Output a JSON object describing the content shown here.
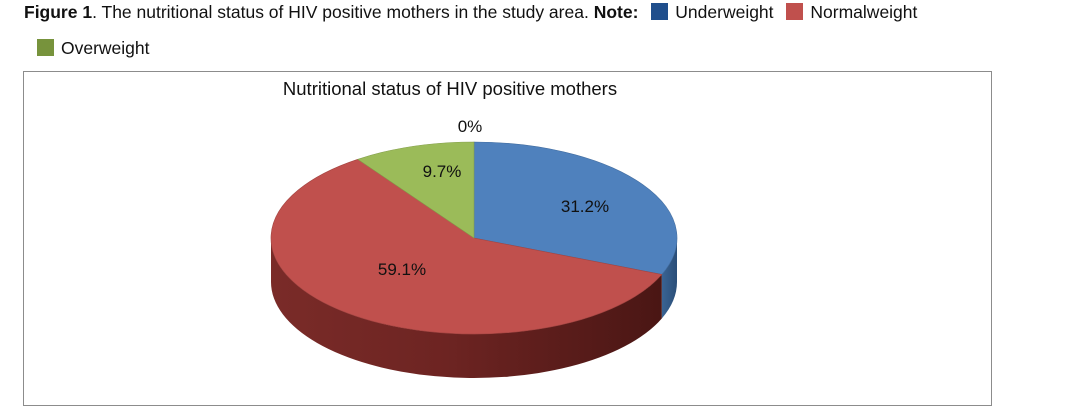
{
  "caption": {
    "figure_label": "Figure 1",
    "sep": ".",
    "text": " The nutritional status of HIV positive mothers in the study area. ",
    "note_label": "Note:"
  },
  "legend": [
    {
      "label": "Underweight",
      "color": "#1f4e8c"
    },
    {
      "label": "Normalweight",
      "color": "#c0504d"
    },
    {
      "label": "Overweight",
      "color": "#77933c"
    }
  ],
  "chart_data": {
    "type": "pie",
    "title": "Nutritional status of HIV positive mothers",
    "three_d": true,
    "slices": [
      {
        "name": "Underweight",
        "value": 31.2,
        "label": "31.2%",
        "color": "#4f81bd"
      },
      {
        "name": "Normalweight",
        "value": 59.1,
        "label": "59.1%",
        "color": "#c0504d"
      },
      {
        "name": "Overweight",
        "value": 9.7,
        "label": "9.7%",
        "color": "#9bbb59"
      }
    ],
    "extra_labels": [
      "0%"
    ]
  }
}
